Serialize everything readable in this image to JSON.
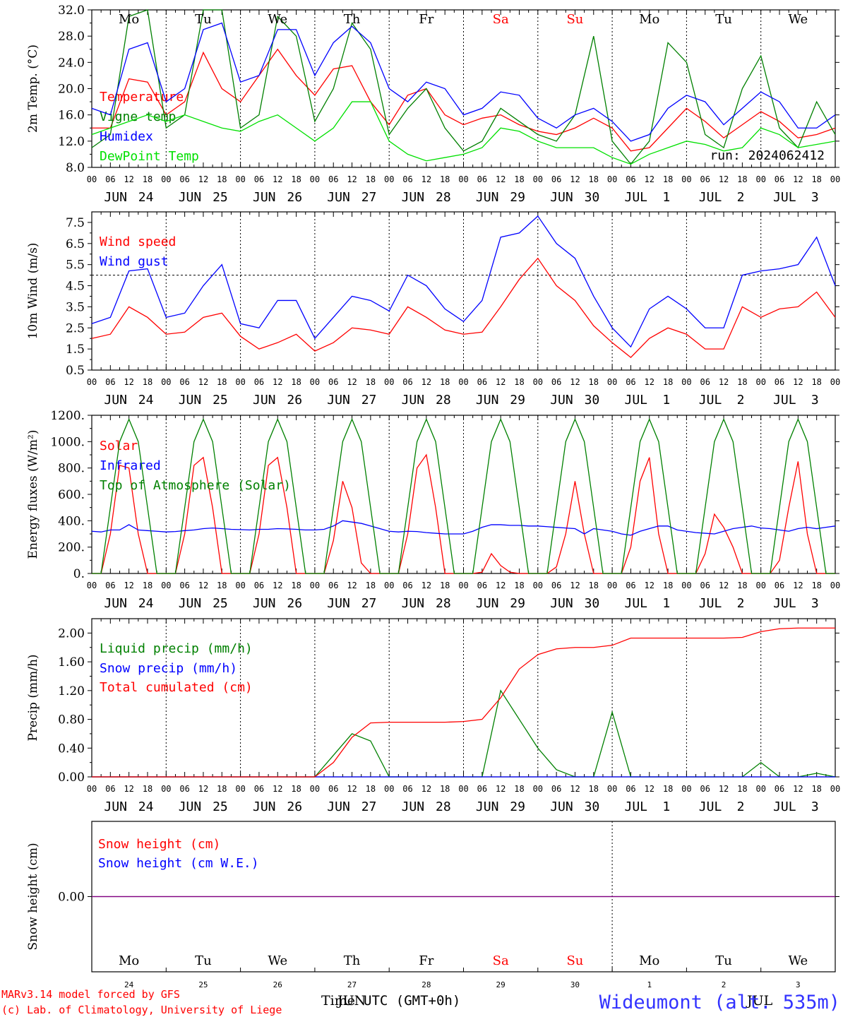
{
  "footer": {
    "model_line": "MARv3.14 model forced by GFS",
    "lab_line": "(c) Lab. of Climatology, University of Liege",
    "time_label": "Time",
    "zone_label": "UTC (GMT+0h)",
    "jun_label": "JUN",
    "jul_label": "JUL",
    "station": "Wideumont (alt. 535m)"
  },
  "colors": {
    "red": "#ff0000",
    "green": "#008000",
    "blue": "#0000ff",
    "lime": "#00e000",
    "purple": "#800080"
  },
  "days": [
    {
      "weekday": "Mo",
      "month": "JUN",
      "date": "24",
      "weekend": false
    },
    {
      "weekday": "Tu",
      "month": "JUN",
      "date": "25",
      "weekend": false
    },
    {
      "weekday": "We",
      "month": "JUN",
      "date": "26",
      "weekend": false
    },
    {
      "weekday": "Th",
      "month": "JUN",
      "date": "27",
      "weekend": false
    },
    {
      "weekday": "Fr",
      "month": "JUN",
      "date": "28",
      "weekend": false
    },
    {
      "weekday": "Sa",
      "month": "JUN",
      "date": "29",
      "weekend": true
    },
    {
      "weekday": "Su",
      "month": "JUN",
      "date": "30",
      "weekend": true
    },
    {
      "weekday": "Mo",
      "month": "JUL",
      "date": "1",
      "weekend": false
    },
    {
      "weekday": "Tu",
      "month": "JUL",
      "date": "2",
      "weekend": false
    },
    {
      "weekday": "We",
      "month": "JUL",
      "date": "3",
      "weekend": false
    }
  ],
  "hour_ticks": [
    "00",
    "06",
    "12",
    "18"
  ],
  "chart_data": [
    {
      "type": "line",
      "ylabel": "2m Temp. (°C)",
      "ylim": [
        8,
        32
      ],
      "yticks": [
        "8.0",
        "12.0",
        "16.0",
        "20.0",
        "24.0",
        "28.0",
        "32.0"
      ],
      "run_label": "run: 2024062412",
      "x_hours": [
        0,
        6,
        12,
        18,
        24,
        30,
        36,
        42,
        48,
        54,
        60,
        66,
        72,
        78,
        84,
        90,
        96,
        102,
        108,
        114,
        120,
        126,
        132,
        138,
        144,
        150,
        156,
        162,
        168,
        174,
        180,
        186,
        192,
        198,
        204,
        210,
        216,
        222,
        228,
        234,
        240
      ],
      "series": [
        {
          "name": "Temperature",
          "color": "red",
          "values": [
            14,
            14,
            21.5,
            21,
            16,
            18,
            25.5,
            20,
            18,
            22,
            26,
            22,
            19,
            23,
            23.5,
            18,
            14.5,
            19,
            20,
            16,
            14.5,
            15.5,
            16,
            14.5,
            13.5,
            13,
            14,
            15.5,
            14,
            10.5,
            11,
            14,
            17,
            15,
            12.5,
            14.5,
            16.5,
            15,
            12.5,
            13,
            14
          ]
        },
        {
          "name": "Vigne temp",
          "color": "green",
          "values": [
            11,
            13,
            31,
            32,
            14,
            16,
            32,
            32,
            14,
            16,
            31,
            28,
            15,
            20,
            30,
            26,
            13,
            17,
            20,
            14,
            10.5,
            12,
            17,
            15,
            13,
            12,
            16,
            28,
            12,
            8.5,
            12,
            27,
            24,
            13,
            11,
            20,
            25,
            14,
            11,
            18,
            13
          ]
        },
        {
          "name": "Humidex",
          "color": "blue",
          "values": [
            17,
            16,
            26,
            27,
            18,
            20,
            29,
            30,
            21,
            22,
            29,
            29,
            22,
            27,
            29.5,
            27,
            20,
            18,
            21,
            20,
            16,
            17,
            19.5,
            19,
            15.5,
            14,
            16,
            17,
            15,
            12,
            13,
            17,
            19,
            18,
            14.5,
            17,
            19.5,
            18,
            14,
            14,
            16
          ]
        },
        {
          "name": "DewPoint Temp",
          "color": "lime",
          "values": [
            13,
            14,
            15,
            16,
            15,
            16,
            15,
            14,
            13.5,
            15,
            16,
            14,
            12,
            14,
            18,
            18,
            12,
            10,
            9,
            9.5,
            10,
            11,
            14,
            13.5,
            12,
            11,
            11,
            11,
            9.5,
            8.5,
            10,
            11,
            12,
            11.5,
            10.5,
            11,
            14,
            13,
            11,
            11.5,
            12
          ]
        }
      ]
    },
    {
      "type": "line",
      "ylabel": "10m Wind (m/s)",
      "ylim": [
        0.5,
        8
      ],
      "yticks": [
        "0.5",
        "1.5",
        "2.5",
        "3.5",
        "4.5",
        "5.5",
        "6.5",
        "7.5"
      ],
      "ref_line": 5,
      "x_hours": [
        0,
        6,
        12,
        18,
        24,
        30,
        36,
        42,
        48,
        54,
        60,
        66,
        72,
        78,
        84,
        90,
        96,
        102,
        108,
        114,
        120,
        126,
        132,
        138,
        144,
        150,
        156,
        162,
        168,
        174,
        180,
        186,
        192,
        198,
        204,
        210,
        216,
        222,
        228,
        234,
        240
      ],
      "series": [
        {
          "name": "Wind speed",
          "color": "red",
          "values": [
            2,
            2.2,
            3.5,
            3,
            2.2,
            2.3,
            3,
            3.2,
            2.1,
            1.5,
            1.8,
            2.2,
            1.4,
            1.8,
            2.5,
            2.4,
            2.2,
            3.5,
            3,
            2.4,
            2.2,
            2.3,
            3.5,
            4.8,
            5.8,
            4.5,
            3.8,
            2.6,
            1.8,
            1.1,
            2,
            2.5,
            2.2,
            1.5,
            1.5,
            3.5,
            3,
            3.4,
            3.5,
            4.2,
            3
          ]
        },
        {
          "name": "Wind gust",
          "color": "blue",
          "values": [
            2.7,
            3,
            5.2,
            5.3,
            3,
            3.2,
            4.5,
            5.5,
            2.7,
            2.5,
            3.8,
            3.8,
            2,
            3,
            4,
            3.8,
            3.3,
            5,
            4.5,
            3.4,
            2.8,
            3.8,
            6.8,
            7,
            7.8,
            6.5,
            5.8,
            4,
            2.5,
            1.6,
            3.4,
            4,
            3.4,
            2.5,
            2.5,
            5,
            5.2,
            5.3,
            5.5,
            6.8,
            4.5
          ]
        }
      ]
    },
    {
      "type": "line",
      "ylabel": "Energy fluxes (W/m²)",
      "ylim": [
        0,
        1200
      ],
      "yticks": [
        "0.",
        "200.",
        "400.",
        "600.",
        "800.",
        "1000.",
        "1200."
      ],
      "x_hours": [
        0,
        3,
        6,
        9,
        12,
        15,
        18,
        21,
        24,
        27,
        30,
        33,
        36,
        39,
        42,
        45,
        48,
        51,
        54,
        57,
        60,
        63,
        66,
        69,
        72,
        75,
        78,
        81,
        84,
        87,
        90,
        93,
        96,
        99,
        102,
        105,
        108,
        111,
        114,
        117,
        120,
        123,
        126,
        129,
        132,
        135,
        138,
        141,
        144,
        147,
        150,
        153,
        156,
        159,
        162,
        165,
        168,
        171,
        174,
        177,
        180,
        183,
        186,
        189,
        192,
        195,
        198,
        201,
        204,
        207,
        210,
        213,
        216,
        219,
        222,
        225,
        228,
        231,
        234,
        237,
        240
      ],
      "series": [
        {
          "name": "Solar",
          "color": "red",
          "values": [
            0,
            0,
            300,
            820,
            800,
            300,
            0,
            0,
            0,
            0,
            300,
            820,
            880,
            500,
            0,
            0,
            0,
            0,
            300,
            820,
            880,
            500,
            0,
            0,
            0,
            0,
            250,
            700,
            500,
            80,
            0,
            0,
            0,
            0,
            300,
            800,
            900,
            500,
            0,
            0,
            0,
            0,
            10,
            150,
            60,
            10,
            0,
            0,
            0,
            0,
            50,
            300,
            700,
            300,
            0,
            0,
            0,
            0,
            200,
            700,
            880,
            300,
            0,
            0,
            0,
            0,
            150,
            450,
            350,
            200,
            0,
            0,
            0,
            0,
            100,
            500,
            850,
            300,
            0,
            0,
            0
          ]
        },
        {
          "name": "Infrared",
          "color": "blue",
          "values": [
            320,
            315,
            330,
            330,
            370,
            330,
            325,
            320,
            315,
            318,
            325,
            330,
            340,
            345,
            340,
            335,
            333,
            330,
            335,
            335,
            340,
            338,
            335,
            330,
            330,
            335,
            360,
            400,
            390,
            380,
            360,
            340,
            320,
            315,
            320,
            318,
            310,
            305,
            300,
            300,
            300,
            320,
            350,
            370,
            370,
            365,
            365,
            360,
            360,
            355,
            350,
            345,
            340,
            300,
            340,
            330,
            320,
            300,
            290,
            320,
            340,
            360,
            360,
            330,
            320,
            310,
            305,
            300,
            320,
            340,
            350,
            360,
            345,
            340,
            330,
            320,
            340,
            350,
            340,
            350,
            360
          ]
        },
        {
          "name": "Top of Atmosphere (Solar)",
          "color": "green",
          "values": [
            0,
            0,
            500,
            1000,
            1170,
            1000,
            500,
            0,
            0,
            0,
            500,
            1000,
            1170,
            1000,
            500,
            0,
            0,
            0,
            500,
            1000,
            1170,
            1000,
            500,
            0,
            0,
            0,
            500,
            1000,
            1170,
            1000,
            500,
            0,
            0,
            0,
            500,
            1000,
            1170,
            1000,
            500,
            0,
            0,
            0,
            500,
            1000,
            1170,
            1000,
            500,
            0,
            0,
            0,
            500,
            1000,
            1170,
            1000,
            500,
            0,
            0,
            0,
            500,
            1000,
            1170,
            1000,
            500,
            0,
            0,
            0,
            500,
            1000,
            1170,
            1000,
            500,
            0,
            0,
            0,
            500,
            1000,
            1170,
            1000,
            500,
            0,
            0
          ]
        }
      ]
    },
    {
      "type": "line",
      "ylabel": "Precip (mm/h)",
      "ylim": [
        0,
        2.2
      ],
      "yticks": [
        "0.00",
        "0.40",
        "0.80",
        "1.20",
        "1.60",
        "2.00"
      ],
      "x_hours": [
        0,
        6,
        12,
        18,
        24,
        30,
        36,
        42,
        48,
        54,
        60,
        66,
        72,
        78,
        84,
        90,
        96,
        102,
        108,
        114,
        120,
        126,
        132,
        138,
        144,
        150,
        156,
        162,
        168,
        174,
        180,
        186,
        192,
        198,
        204,
        210,
        216,
        222,
        228,
        234,
        240
      ],
      "series": [
        {
          "name": "Liquid precip (mm/h)",
          "color": "green",
          "values": [
            0,
            0,
            0,
            0,
            0,
            0,
            0,
            0,
            0,
            0,
            0,
            0,
            0,
            0.3,
            0.6,
            0.5,
            0,
            0,
            0,
            0,
            0,
            0,
            1.2,
            0.8,
            0.4,
            0.1,
            0,
            0,
            0.9,
            0,
            0,
            0,
            0,
            0,
            0,
            0,
            0.2,
            0,
            0,
            0.05,
            0
          ]
        },
        {
          "name": "Snow precip (mm/h)",
          "color": "blue",
          "values": [
            0,
            0,
            0,
            0,
            0,
            0,
            0,
            0,
            0,
            0,
            0,
            0,
            0,
            0,
            0,
            0,
            0,
            0,
            0,
            0,
            0,
            0,
            0,
            0,
            0,
            0,
            0,
            0,
            0,
            0,
            0,
            0,
            0,
            0,
            0,
            0,
            0,
            0,
            0,
            0,
            0
          ]
        },
        {
          "name": "Total cumulated (cm)",
          "color": "red",
          "values": [
            0,
            0,
            0,
            0,
            0,
            0,
            0,
            0,
            0,
            0,
            0,
            0,
            0,
            0.2,
            0.55,
            0.75,
            0.76,
            0.76,
            0.76,
            0.76,
            0.77,
            0.8,
            1.1,
            1.5,
            1.7,
            1.78,
            1.8,
            1.8,
            1.83,
            1.93,
            1.93,
            1.93,
            1.93,
            1.93,
            1.93,
            1.94,
            2.02,
            2.06,
            2.07,
            2.07,
            2.07
          ]
        }
      ]
    },
    {
      "type": "line",
      "ylabel": "Snow height (cm)",
      "ylim": [
        -1,
        1
      ],
      "yticks": [
        "0.00"
      ],
      "x_hours": [
        0,
        240
      ],
      "series": [
        {
          "name": "Snow height (cm)",
          "color": "red",
          "values": [
            0,
            0
          ]
        },
        {
          "name": "Snow height (cm W.E.)",
          "color": "blue",
          "values": [
            0,
            0
          ]
        }
      ]
    }
  ]
}
